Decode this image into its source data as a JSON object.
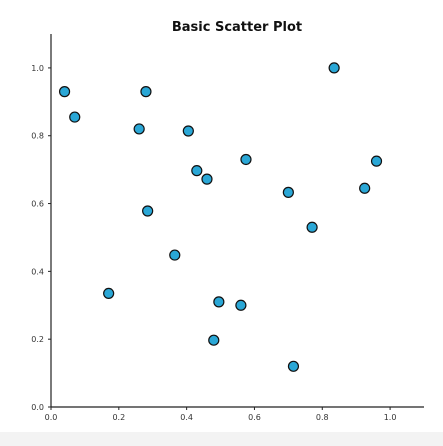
{
  "chart_data": {
    "type": "scatter",
    "title": "Basic Scatter Plot",
    "xlabel": "",
    "ylabel": "",
    "xlim": [
      0.0,
      1.1
    ],
    "ylim": [
      0.0,
      1.1
    ],
    "xticks": [
      "0.0",
      "0.2",
      "0.4",
      "0.6",
      "0.8",
      "1.0"
    ],
    "yticks": [
      "0.0",
      "0.2",
      "0.4",
      "0.6",
      "0.8",
      "1.0"
    ],
    "grid": false,
    "legend": "none",
    "marker_color": "#2aa7d6",
    "marker_edge_color": "#111111",
    "axis_color": "#222222",
    "points": [
      {
        "x": 0.04,
        "y": 0.93
      },
      {
        "x": 0.07,
        "y": 0.855
      },
      {
        "x": 0.17,
        "y": 0.335
      },
      {
        "x": 0.26,
        "y": 0.82
      },
      {
        "x": 0.28,
        "y": 0.93
      },
      {
        "x": 0.285,
        "y": 0.578
      },
      {
        "x": 0.365,
        "y": 0.448
      },
      {
        "x": 0.405,
        "y": 0.814
      },
      {
        "x": 0.43,
        "y": 0.697
      },
      {
        "x": 0.46,
        "y": 0.672
      },
      {
        "x": 0.48,
        "y": 0.197
      },
      {
        "x": 0.495,
        "y": 0.31
      },
      {
        "x": 0.56,
        "y": 0.3
      },
      {
        "x": 0.575,
        "y": 0.73
      },
      {
        "x": 0.7,
        "y": 0.633
      },
      {
        "x": 0.715,
        "y": 0.12
      },
      {
        "x": 0.77,
        "y": 0.53
      },
      {
        "x": 0.835,
        "y": 1.0
      },
      {
        "x": 0.925,
        "y": 0.645
      },
      {
        "x": 0.96,
        "y": 0.725
      }
    ]
  }
}
